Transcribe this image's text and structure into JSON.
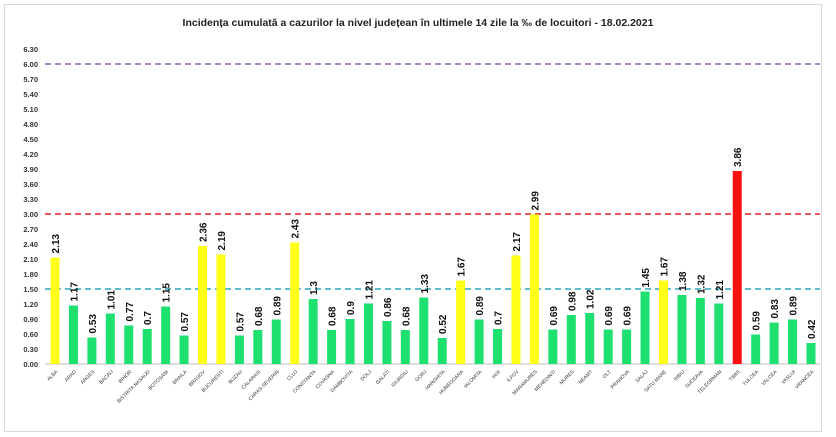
{
  "chart_data": {
    "type": "bar",
    "title": "Incidența cumulată a cazurilor la nivel județean în ultimele 14 zile la ‰ de locuitori - 18.02.2021",
    "xlabel": "",
    "ylabel": "",
    "ylim": [
      0,
      6.3
    ],
    "yticks": [
      "0.00",
      "0.30",
      "0.60",
      "0.90",
      "1.20",
      "1.50",
      "1.80",
      "2.10",
      "2.40",
      "2.70",
      "3.00",
      "3.30",
      "3.60",
      "3.90",
      "4.20",
      "4.50",
      "4.80",
      "5.10",
      "5.40",
      "5.70",
      "6.00",
      "6.30"
    ],
    "grid": false,
    "categories": [
      "ALBA",
      "ARAD",
      "ARGES",
      "BACAU",
      "BIHOR",
      "BISTRITA NASAUD",
      "BOTOSANI",
      "BRAILA",
      "BRASOV",
      "BUCURESTI",
      "BUZAU",
      "CALARASI",
      "CARAS-SEVERIN",
      "CLUJ",
      "CONSTANTA",
      "COVASNA",
      "DAMBOVITA",
      "DOLJ",
      "GALATI",
      "GIURGIU",
      "GORJ",
      "HARGHITA",
      "HUNEDOARA",
      "IALOMITA",
      "IASI",
      "ILFOV",
      "MARAMURES",
      "MEHEDINTI",
      "MURES",
      "NEAMT",
      "OLT",
      "PRAHOVA",
      "SALAJ",
      "SATU MARE",
      "SIBIU",
      "SUCEAVA",
      "TELEORMAN",
      "TIMIS",
      "TULCEA",
      "VALCEA",
      "VASLUI",
      "VRANCEA"
    ],
    "values": [
      2.13,
      1.17,
      0.53,
      1.01,
      0.77,
      0.7,
      1.15,
      0.57,
      2.36,
      2.19,
      0.57,
      0.68,
      0.89,
      2.43,
      1.3,
      0.68,
      0.9,
      1.21,
      0.86,
      0.68,
      1.33,
      0.52,
      1.67,
      0.89,
      0.7,
      2.17,
      2.99,
      0.69,
      0.98,
      1.02,
      0.69,
      0.69,
      1.45,
      1.67,
      1.38,
      1.32,
      1.21,
      3.86,
      0.59,
      0.83,
      0.89,
      0.42
    ],
    "value_labels": [
      "2.13",
      "1.17",
      "0.53",
      "1.01",
      "0.77",
      "0.7",
      "1.15",
      "0.57",
      "2.36",
      "2.19",
      "0.57",
      "0.68",
      "0.89",
      "2.43",
      "1.3",
      "0.68",
      "0.9",
      "1.21",
      "0.86",
      "0.68",
      "1.33",
      "0.52",
      "1.67",
      "0.89",
      "0.7",
      "2.17",
      "2.99",
      "0.69",
      "0.98",
      "1.02",
      "0.69",
      "0.69",
      "1.45",
      "1.67",
      "1.38",
      "1.32",
      "1.21",
      "3.86",
      "0.59",
      "0.83",
      "0.89",
      "0.42"
    ],
    "thresholds": [
      {
        "value": 1.5,
        "color": "#2aa7b8"
      },
      {
        "value": 3.0,
        "color": "#e0202a"
      },
      {
        "value": 6.0,
        "color": "#7b3f9e"
      }
    ],
    "colors": {
      "low": "#1ee06e",
      "mid": "#ffff1a",
      "high": "#ff1010"
    }
  }
}
